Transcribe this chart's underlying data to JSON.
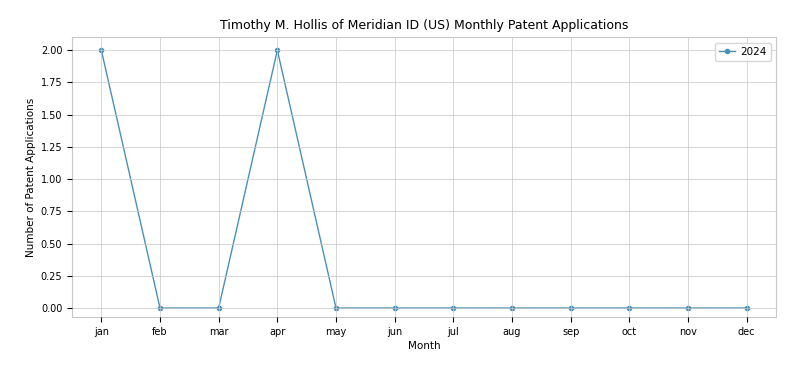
{
  "title": "Timothy M. Hollis of Meridian ID (US) Monthly Patent Applications",
  "xlabel": "Month",
  "ylabel": "Number of Patent Applications",
  "months": [
    "jan",
    "feb",
    "mar",
    "apr",
    "may",
    "jun",
    "jul",
    "aug",
    "sep",
    "oct",
    "nov",
    "dec"
  ],
  "values_2024": [
    2,
    0,
    0,
    2,
    0,
    0,
    0,
    0,
    0,
    0,
    0,
    0
  ],
  "line_color": "#4a90b8",
  "marker": "o",
  "marker_size": 3,
  "legend_label": "2024",
  "ylim": [
    -0.07,
    2.1
  ],
  "yticks": [
    0.0,
    0.25,
    0.5,
    0.75,
    1.0,
    1.25,
    1.5,
    1.75,
    2.0
  ],
  "title_fontsize": 9,
  "axis_label_fontsize": 7.5,
  "tick_fontsize": 7,
  "legend_fontsize": 7.5,
  "background_color": "#ffffff",
  "grid_color": "#c8c8c8",
  "line_width": 1.0
}
